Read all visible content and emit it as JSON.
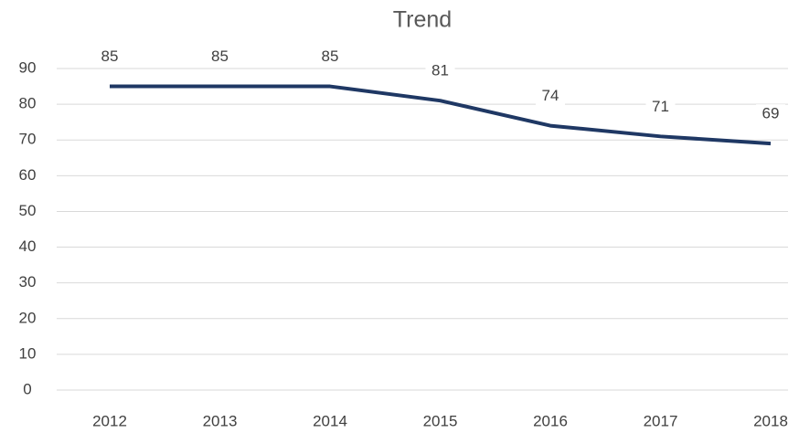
{
  "chart_data": {
    "type": "line",
    "title": "Trend",
    "categories": [
      "2012",
      "2013",
      "2014",
      "2015",
      "2016",
      "2017",
      "2018"
    ],
    "values": [
      85,
      85,
      85,
      81,
      74,
      71,
      69
    ],
    "color": "#1f3864",
    "ylim": [
      0,
      90
    ],
    "yticks": [
      0,
      10,
      20,
      30,
      40,
      50,
      60,
      70,
      80,
      90
    ],
    "grid": true
  }
}
